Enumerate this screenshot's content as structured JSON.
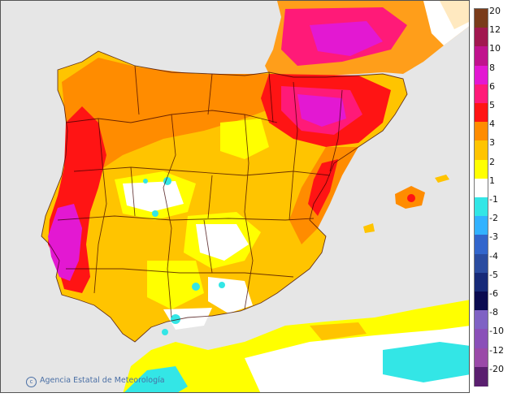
{
  "credit": "Agencia Estatal de Meteorología",
  "legend": {
    "labels": [
      "20",
      "12",
      "10",
      "8",
      "6",
      "5",
      "4",
      "3",
      "2",
      "1",
      "-1",
      "-2",
      "-3",
      "-4",
      "-5",
      "-6",
      "-8",
      "-10",
      "-12",
      "-20"
    ],
    "colors": [
      "#7a3b1a",
      "#a1184f",
      "#c0138d",
      "#e318d2",
      "#ff1a78",
      "#ff1414",
      "#ff8c00",
      "#ffc400",
      "#ffff00",
      "#ffffff",
      "#33e6e6",
      "#33b2ff",
      "#3366cc",
      "#2b4ca0",
      "#172a78",
      "#0b0b50",
      "#7f62c4",
      "#8a50b8",
      "#9a4aa8",
      "#5a1f6f"
    ]
  },
  "colors": {
    "sea": "#e6e6e6",
    "positive_1": "#ffff00",
    "positive_2": "#ffc400",
    "positive_3": "#ff8c00",
    "positive_4": "#ff1414",
    "positive_5": "#ff1a78",
    "positive_6": "#e318d2",
    "negative_1": "#33e6e6"
  }
}
